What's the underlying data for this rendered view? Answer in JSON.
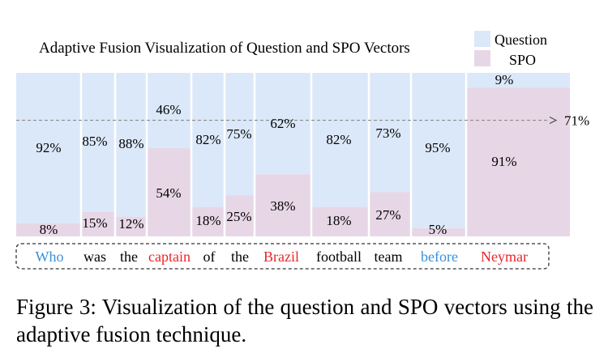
{
  "chart_data": {
    "type": "bar",
    "stacked": true,
    "variable_width": true,
    "title": "Adaptive Fusion Visualization of Question and SPO Vectors",
    "legend": {
      "position": "top-right"
    },
    "categories": [
      "Who",
      "was",
      "the",
      "captain",
      "of",
      "the",
      "Brazil",
      "football",
      "team",
      "before",
      "Neymar"
    ],
    "bars": [
      {
        "question": 92,
        "spo": 8
      },
      {
        "question": 85,
        "spo": 15
      },
      {
        "question": 88,
        "spo": 12
      },
      {
        "question": 46,
        "spo": 54
      },
      {
        "question": 82,
        "spo": 18
      },
      {
        "question": 75,
        "spo": 25
      },
      {
        "question": 62,
        "spo": 38
      },
      {
        "question": 82,
        "spo": 18
      },
      {
        "question": 73,
        "spo": 27
      },
      {
        "question": 95,
        "spo": 5
      },
      {
        "question": 9,
        "spo": 91
      }
    ],
    "series": [
      {
        "name": "Question",
        "key": "question",
        "color": "#dbe8f9"
      },
      {
        "name": "SPO",
        "key": "spo",
        "color": "#e7d7e6"
      }
    ],
    "reference_line": {
      "value": 71,
      "label": "71%"
    },
    "ylim": [
      0,
      100
    ],
    "word_colors": {
      "Who": "#3a8fd9",
      "captain": "#e8262a",
      "Brazil": "#e8262a",
      "before": "#3a8fd9",
      "Neymar": "#e8262a"
    }
  },
  "caption": "Figure 3: Visualization of the question and SPO vectors using the adaptive fusion technique."
}
